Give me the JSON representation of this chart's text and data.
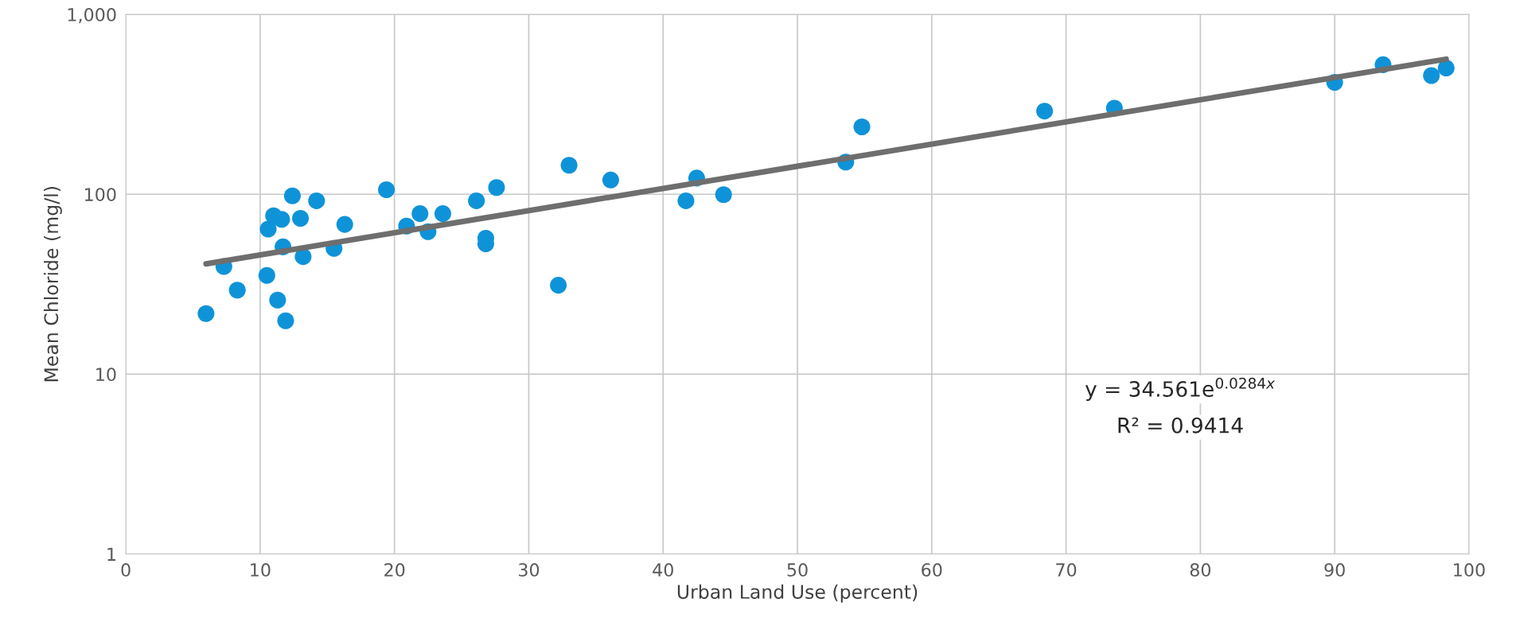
{
  "chart_data": {
    "type": "scatter",
    "xlabel": "Urban Land Use (percent)",
    "ylabel": "Mean Chloride (mg/l)",
    "log": "y",
    "grid": true,
    "xlim": [
      0,
      100
    ],
    "xticks": [
      0,
      10,
      20,
      30,
      40,
      50,
      60,
      70,
      80,
      90,
      100
    ],
    "ylim": [
      1,
      1000
    ],
    "yticks": [
      1,
      10,
      100,
      {
        "value": 1000,
        "label": "1,000"
      }
    ],
    "series": [
      {
        "marker": "circle",
        "color": "#0f93d8",
        "x": [
          5.97,
          7.3,
          8.3,
          10.5,
          10.6,
          11.0,
          11.3,
          11.6,
          11.7,
          11.9,
          12.4,
          13.0,
          13.2,
          14.2,
          15.5,
          16.3,
          19.4,
          20.9,
          21.9,
          22.5,
          23.6,
          26.1,
          26.8,
          26.8,
          27.6,
          32.2,
          33.0,
          36.1,
          41.7,
          42.5,
          44.5,
          53.6,
          54.8,
          68.4,
          73.6,
          90.0,
          93.6,
          97.2,
          98.3
        ],
        "values": [
          21.7,
          39.7,
          29.3,
          35.4,
          64,
          76,
          25.8,
          72.6,
          51,
          19.8,
          98,
          73.5,
          45,
          92,
          50,
          68,
          106,
          66.5,
          78,
          62,
          78,
          92,
          57,
          53,
          109,
          31.2,
          145,
          120,
          92,
          123,
          99.5,
          151,
          237,
          290,
          301,
          419,
          525,
          457,
          503
        ]
      },
      {
        "type": "line",
        "color": "#6e6e6e",
        "x": [
          5.97,
          98.3
        ],
        "values": [
          41,
          564
        ]
      }
    ],
    "annotations": [
      "y = 34.561e$^{0.0284x}$",
      "R² = 0.9414"
    ]
  }
}
